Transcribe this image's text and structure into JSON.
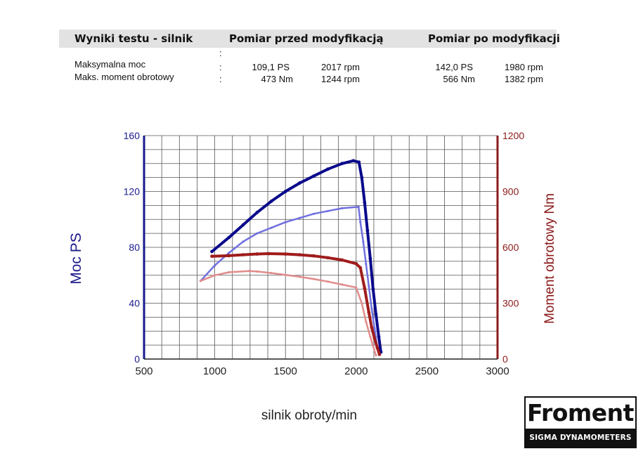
{
  "header": {
    "col1": "Wyniki testu - silnik",
    "col2": "Pomiar przed modyfikacją",
    "col3": "Pomiar po modyfikacji"
  },
  "results": {
    "colon": ":",
    "rows": [
      {
        "label": "Maksymalna moc",
        "before_value": "109,1 PS",
        "before_rpm": "2017 rpm",
        "after_value": "142,0 PS",
        "after_rpm": "1980 rpm"
      },
      {
        "label": "Maks. moment obrotowy",
        "before_value": "473 Nm",
        "before_rpm": "1244 rpm",
        "after_value": "566 Nm",
        "after_rpm": "1382 rpm"
      }
    ]
  },
  "logo": {
    "name": "Froment",
    "tagline": "SIGMA DYNAMOMETERS"
  },
  "colors": {
    "power_after": "#0a0a8c",
    "power_before": "#7070e0",
    "torque_after": "#a01c1c",
    "torque_before": "#e08c8c",
    "left_axis": "#1a1a8c",
    "right_axis": "#8c1a1a"
  },
  "chart_data": {
    "type": "line",
    "xlabel": "silnik obroty/min",
    "ylabel": "Moc PS",
    "y2label": "Moment obrotowy Nm",
    "xlim": [
      500,
      3000
    ],
    "ylim": [
      0,
      160
    ],
    "y2lim": [
      0,
      1200
    ],
    "x_ticks": [
      500,
      1000,
      1500,
      2000,
      2500,
      3000
    ],
    "y_ticks": [
      0,
      40,
      80,
      120,
      160
    ],
    "y2_ticks": [
      0,
      300,
      600,
      900,
      1200
    ],
    "grid": true,
    "series": [
      {
        "axis": "left",
        "color_key": "power_after",
        "x": [
          980,
          1100,
          1200,
          1300,
          1400,
          1500,
          1600,
          1700,
          1800,
          1900,
          1980,
          2020,
          2040,
          2060,
          2080,
          2100,
          2120,
          2140,
          2160,
          2175
        ],
        "y": [
          77,
          87,
          96,
          105,
          113,
          120,
          126,
          131,
          136,
          140,
          142,
          141,
          130,
          112,
          92,
          72,
          50,
          32,
          16,
          5
        ]
      },
      {
        "axis": "left",
        "color_key": "power_before",
        "x": [
          900,
          1000,
          1100,
          1200,
          1300,
          1400,
          1500,
          1600,
          1700,
          1800,
          1900,
          2017,
          2030,
          2050,
          2070,
          2090,
          2110,
          2130,
          2150
        ],
        "y": [
          56,
          67,
          76,
          84,
          90,
          94,
          98,
          101,
          104,
          106,
          108,
          109,
          98,
          84,
          68,
          52,
          36,
          22,
          8
        ]
      },
      {
        "axis": "right",
        "color_key": "torque_after",
        "x": [
          980,
          1100,
          1200,
          1300,
          1382,
          1500,
          1600,
          1700,
          1800,
          1900,
          2000,
          2030,
          2060,
          2090,
          2110,
          2130,
          2150,
          2165
        ],
        "y": [
          552,
          555,
          560,
          564,
          566,
          564,
          560,
          554,
          544,
          532,
          512,
          490,
          380,
          250,
          170,
          110,
          60,
          25
        ]
      },
      {
        "axis": "right",
        "color_key": "torque_before",
        "x": [
          900,
          1000,
          1100,
          1244,
          1300,
          1400,
          1500,
          1600,
          1700,
          1800,
          1900,
          2000,
          2040,
          2070,
          2100,
          2120,
          2140
        ],
        "y": [
          420,
          450,
          466,
          473,
          470,
          462,
          452,
          442,
          430,
          416,
          400,
          384,
          300,
          200,
          120,
          70,
          20
        ]
      }
    ]
  }
}
